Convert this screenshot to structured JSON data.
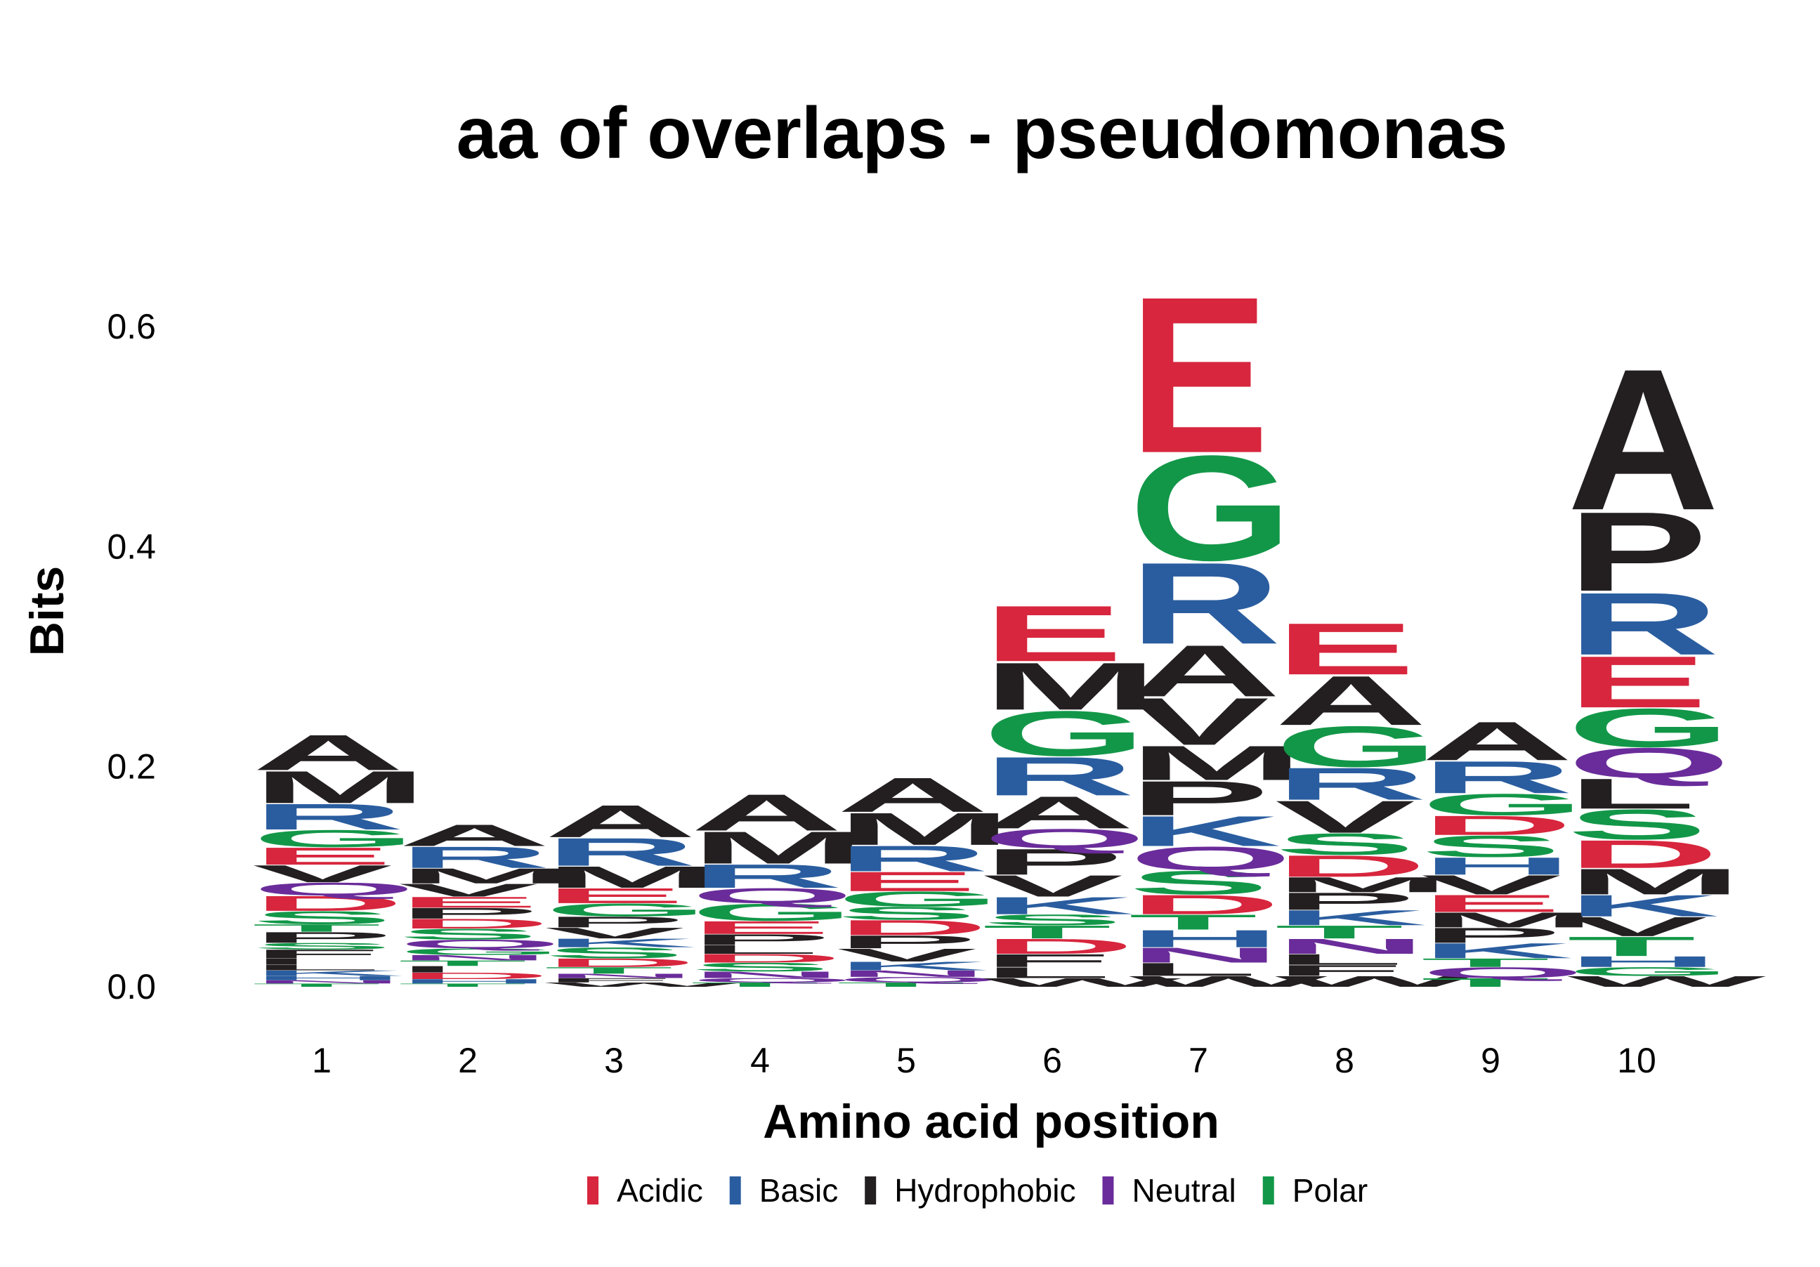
{
  "chart_data": {
    "type": "sequence-logo",
    "title": "aa of overlaps - pseudomonas",
    "xlabel": "Amino acid position",
    "ylabel": "Bits",
    "ylim": [
      0,
      0.7
    ],
    "yticks": [
      0.0,
      0.2,
      0.4,
      0.6
    ],
    "ytick_labels": [
      "0.0",
      "0.2",
      "0.4",
      "0.6"
    ],
    "positions": [
      "1",
      "2",
      "3",
      "4",
      "5",
      "6",
      "7",
      "8",
      "9",
      "10"
    ],
    "legend": [
      {
        "label": "Acidic",
        "color": "#d7263d"
      },
      {
        "label": "Basic",
        "color": "#2a5d9f"
      },
      {
        "label": "Hydrophobic",
        "color": "#231f20"
      },
      {
        "label": "Neutral",
        "color": "#6a2c9a"
      },
      {
        "label": "Polar",
        "color": "#129748"
      }
    ],
    "class_colors": {
      "A": "#231f20",
      "M": "#231f20",
      "V": "#231f20",
      "P": "#231f20",
      "L": "#231f20",
      "I": "#231f20",
      "F": "#231f20",
      "W": "#231f20",
      "R": "#2a5d9f",
      "K": "#2a5d9f",
      "H": "#2a5d9f",
      "E": "#d7263d",
      "D": "#d7263d",
      "Q": "#6a2c9a",
      "N": "#6a2c9a",
      "G": "#129748",
      "S": "#129748",
      "T": "#129748",
      "Y": "#129748",
      "C": "#129748"
    },
    "stacks": [
      [
        [
          "T",
          0.003
        ],
        [
          "N",
          0.003
        ],
        [
          "H",
          0.004
        ],
        [
          "K",
          0.005
        ],
        [
          "L",
          0.005
        ],
        [
          "I",
          0.006
        ],
        [
          "F",
          0.008
        ],
        [
          "S",
          0.006
        ],
        [
          "P",
          0.01
        ],
        [
          "T",
          0.007
        ],
        [
          "S",
          0.012
        ],
        [
          "D",
          0.014
        ],
        [
          "Q",
          0.012
        ],
        [
          "V",
          0.016
        ],
        [
          "E",
          0.016
        ],
        [
          "G",
          0.016
        ],
        [
          "R",
          0.024
        ],
        [
          "M",
          0.03
        ],
        [
          "A",
          0.033
        ]
      ],
      [
        [
          "T",
          0.003
        ],
        [
          "H",
          0.004
        ],
        [
          "D",
          0.006
        ],
        [
          "I",
          0.006
        ],
        [
          "T",
          0.005
        ],
        [
          "N",
          0.005
        ],
        [
          "G",
          0.006
        ],
        [
          "Q",
          0.008
        ],
        [
          "S",
          0.01
        ],
        [
          "D",
          0.009
        ],
        [
          "P",
          0.01
        ],
        [
          "E",
          0.01
        ],
        [
          "V",
          0.012
        ],
        [
          "M",
          0.014
        ],
        [
          "R",
          0.02
        ],
        [
          "A",
          0.02
        ]
      ],
      [
        [
          "W",
          0.004
        ],
        [
          "F",
          0.004
        ],
        [
          "N",
          0.004
        ],
        [
          "T",
          0.006
        ],
        [
          "D",
          0.008
        ],
        [
          "S",
          0.01
        ],
        [
          "K",
          0.008
        ],
        [
          "V",
          0.01
        ],
        [
          "P",
          0.01
        ],
        [
          "G",
          0.012
        ],
        [
          "E",
          0.014
        ],
        [
          "M",
          0.02
        ],
        [
          "R",
          0.026
        ],
        [
          "A",
          0.03
        ]
      ],
      [
        [
          "T",
          0.004
        ],
        [
          "Q",
          0.004
        ],
        [
          "N",
          0.006
        ],
        [
          "S",
          0.008
        ],
        [
          "D",
          0.008
        ],
        [
          "L",
          0.008
        ],
        [
          "P",
          0.01
        ],
        [
          "E",
          0.012
        ],
        [
          "G",
          0.016
        ],
        [
          "Q",
          0.014
        ],
        [
          "R",
          0.022
        ],
        [
          "M",
          0.03
        ],
        [
          "A",
          0.034
        ]
      ],
      [
        [
          "T",
          0.004
        ],
        [
          "Q",
          0.005
        ],
        [
          "N",
          0.006
        ],
        [
          "K",
          0.008
        ],
        [
          "V",
          0.012
        ],
        [
          "P",
          0.012
        ],
        [
          "D",
          0.014
        ],
        [
          "S",
          0.012
        ],
        [
          "G",
          0.014
        ],
        [
          "E",
          0.018
        ],
        [
          "R",
          0.024
        ],
        [
          "M",
          0.03
        ],
        [
          "A",
          0.032
        ]
      ],
      [
        [
          "W",
          0.008
        ],
        [
          "L",
          0.01
        ],
        [
          "F",
          0.012
        ],
        [
          "D",
          0.014
        ],
        [
          "T",
          0.012
        ],
        [
          "S",
          0.01
        ],
        [
          "K",
          0.016
        ],
        [
          "V",
          0.02
        ],
        [
          "P",
          0.024
        ],
        [
          "Q",
          0.018
        ],
        [
          "A",
          0.03
        ],
        [
          "R",
          0.036
        ],
        [
          "G",
          0.042
        ],
        [
          "M",
          0.044
        ],
        [
          "E",
          0.052
        ]
      ],
      [
        [
          "W",
          0.01
        ],
        [
          "L",
          0.012
        ],
        [
          "N",
          0.014
        ],
        [
          "H",
          0.016
        ],
        [
          "T",
          0.014
        ],
        [
          "D",
          0.018
        ],
        [
          "S",
          0.022
        ],
        [
          "Q",
          0.022
        ],
        [
          "K",
          0.028
        ],
        [
          "P",
          0.032
        ],
        [
          "M",
          0.032
        ],
        [
          "V",
          0.044
        ],
        [
          "A",
          0.048
        ],
        [
          "R",
          0.076
        ],
        [
          "G",
          0.098
        ],
        [
          "E",
          0.146
        ]
      ],
      [
        [
          "W",
          0.01
        ],
        [
          "F",
          0.01
        ],
        [
          "L",
          0.01
        ],
        [
          "N",
          0.014
        ],
        [
          "T",
          0.012
        ],
        [
          "K",
          0.014
        ],
        [
          "P",
          0.016
        ],
        [
          "M",
          0.014
        ],
        [
          "D",
          0.02
        ],
        [
          "S",
          0.02
        ],
        [
          "V",
          0.03
        ],
        [
          "R",
          0.03
        ],
        [
          "G",
          0.038
        ],
        [
          "A",
          0.046
        ],
        [
          "E",
          0.048
        ]
      ],
      [
        [
          "T",
          0.008
        ],
        [
          "Q",
          0.01
        ],
        [
          "T",
          0.008
        ],
        [
          "K",
          0.014
        ],
        [
          "P",
          0.014
        ],
        [
          "M",
          0.014
        ],
        [
          "E",
          0.016
        ],
        [
          "V",
          0.018
        ],
        [
          "H",
          0.016
        ],
        [
          "S",
          0.02
        ],
        [
          "D",
          0.018
        ],
        [
          "G",
          0.02
        ],
        [
          "R",
          0.03
        ],
        [
          "A",
          0.036
        ]
      ],
      [
        [
          "W",
          0.01
        ],
        [
          "G",
          0.008
        ],
        [
          "H",
          0.01
        ],
        [
          "T",
          0.018
        ],
        [
          "V",
          0.018
        ],
        [
          "K",
          0.02
        ],
        [
          "M",
          0.024
        ],
        [
          "D",
          0.026
        ],
        [
          "S",
          0.028
        ],
        [
          "L",
          0.028
        ],
        [
          "Q",
          0.028
        ],
        [
          "G",
          0.036
        ],
        [
          "E",
          0.048
        ],
        [
          "R",
          0.058
        ],
        [
          "P",
          0.074
        ],
        [
          "A",
          0.132
        ]
      ]
    ]
  }
}
